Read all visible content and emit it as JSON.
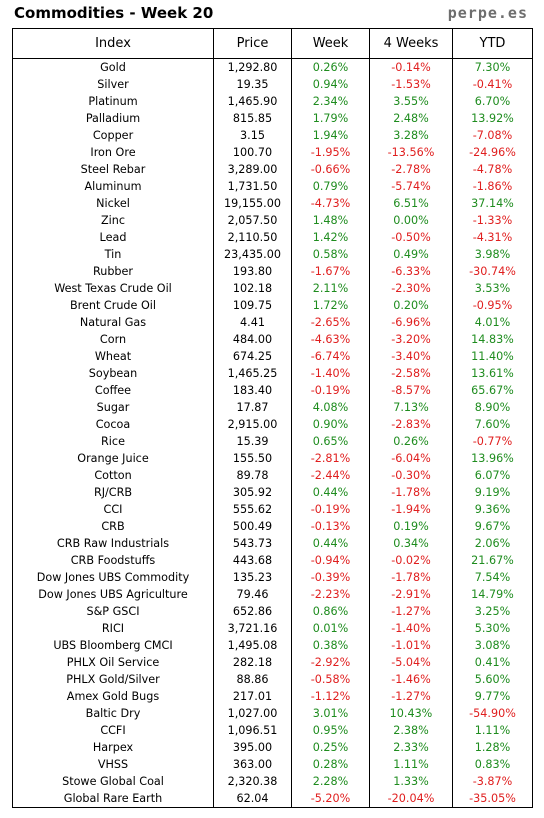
{
  "header": {
    "title": "Commodities - Week 20",
    "brand": "perpe.es"
  },
  "columns": {
    "index": "Index",
    "price": "Price",
    "week": "Week",
    "weeks4": "4 Weeks",
    "ytd": "YTD"
  },
  "colors": {
    "positive": "#1e8c1e",
    "negative": "#e01e1e"
  },
  "rows": [
    [
      "Gold",
      "1,292.80",
      "0.26%",
      "-0.14%",
      "7.30%"
    ],
    [
      "Silver",
      "19.35",
      "0.94%",
      "-1.53%",
      "-0.41%"
    ],
    [
      "Platinum",
      "1,465.90",
      "2.34%",
      "3.55%",
      "6.70%"
    ],
    [
      "Palladium",
      "815.85",
      "1.79%",
      "2.48%",
      "13.92%"
    ],
    [
      "Copper",
      "3.15",
      "1.94%",
      "3.28%",
      "-7.08%"
    ],
    [
      "Iron Ore",
      "100.70",
      "-1.95%",
      "-13.56%",
      "-24.96%"
    ],
    [
      "Steel Rebar",
      "3,289.00",
      "-0.66%",
      "-2.78%",
      "-4.78%"
    ],
    [
      "Aluminum",
      "1,731.50",
      "0.79%",
      "-5.74%",
      "-1.86%"
    ],
    [
      "Nickel",
      "19,155.00",
      "-4.73%",
      "6.51%",
      "37.14%"
    ],
    [
      "Zinc",
      "2,057.50",
      "1.48%",
      "0.00%",
      "-1.33%"
    ],
    [
      "Lead",
      "2,110.50",
      "1.42%",
      "-0.50%",
      "-4.31%"
    ],
    [
      "Tin",
      "23,435.00",
      "0.58%",
      "0.49%",
      "3.98%"
    ],
    [
      "Rubber",
      "193.80",
      "-1.67%",
      "-6.33%",
      "-30.74%"
    ],
    [
      "West Texas Crude Oil",
      "102.18",
      "2.11%",
      "-2.30%",
      "3.53%"
    ],
    [
      "Brent Crude Oil",
      "109.75",
      "1.72%",
      "0.20%",
      "-0.95%"
    ],
    [
      "Natural Gas",
      "4.41",
      "-2.65%",
      "-6.96%",
      "4.01%"
    ],
    [
      "Corn",
      "484.00",
      "-4.63%",
      "-3.20%",
      "14.83%"
    ],
    [
      "Wheat",
      "674.25",
      "-6.74%",
      "-3.40%",
      "11.40%"
    ],
    [
      "Soybean",
      "1,465.25",
      "-1.40%",
      "-2.58%",
      "13.61%"
    ],
    [
      "Coffee",
      "183.40",
      "-0.19%",
      "-8.57%",
      "65.67%"
    ],
    [
      "Sugar",
      "17.87",
      "4.08%",
      "7.13%",
      "8.90%"
    ],
    [
      "Cocoa",
      "2,915.00",
      "0.90%",
      "-2.83%",
      "7.60%"
    ],
    [
      "Rice",
      "15.39",
      "0.65%",
      "0.26%",
      "-0.77%"
    ],
    [
      "Orange Juice",
      "155.50",
      "-2.81%",
      "-6.04%",
      "13.96%"
    ],
    [
      "Cotton",
      "89.78",
      "-2.44%",
      "-0.30%",
      "6.07%"
    ],
    [
      "RJ/CRB",
      "305.92",
      "0.44%",
      "-1.78%",
      "9.19%"
    ],
    [
      "CCI",
      "555.62",
      "-0.19%",
      "-1.94%",
      "9.36%"
    ],
    [
      "CRB",
      "500.49",
      "-0.13%",
      "0.19%",
      "9.67%"
    ],
    [
      "CRB Raw Industrials",
      "543.73",
      "0.44%",
      "0.34%",
      "2.06%"
    ],
    [
      "CRB Foodstuffs",
      "443.68",
      "-0.94%",
      "-0.02%",
      "21.67%"
    ],
    [
      "Dow Jones UBS Commodity",
      "135.23",
      "-0.39%",
      "-1.78%",
      "7.54%"
    ],
    [
      "Dow Jones UBS Agriculture",
      "79.46",
      "-2.23%",
      "-2.91%",
      "14.79%"
    ],
    [
      "S&P GSCI",
      "652.86",
      "0.86%",
      "-1.27%",
      "3.25%"
    ],
    [
      "RICI",
      "3,721.16",
      "0.01%",
      "-1.40%",
      "5.30%"
    ],
    [
      "UBS Bloomberg CMCI",
      "1,495.08",
      "0.38%",
      "-1.01%",
      "3.08%"
    ],
    [
      "PHLX Oil Service",
      "282.18",
      "-2.92%",
      "-5.04%",
      "0.41%"
    ],
    [
      "PHLX Gold/Silver",
      "88.86",
      "-0.58%",
      "-1.46%",
      "5.60%"
    ],
    [
      "Amex Gold Bugs",
      "217.01",
      "-1.12%",
      "-1.27%",
      "9.77%"
    ],
    [
      "Baltic Dry",
      "1,027.00",
      "3.01%",
      "10.43%",
      "-54.90%"
    ],
    [
      "CCFI",
      "1,096.51",
      "0.95%",
      "2.38%",
      "1.11%"
    ],
    [
      "Harpex",
      "395.00",
      "0.25%",
      "2.33%",
      "1.28%"
    ],
    [
      "VHSS",
      "363.00",
      "0.28%",
      "1.11%",
      "0.83%"
    ],
    [
      "Stowe Global Coal",
      "2,320.38",
      "2.28%",
      "1.33%",
      "-3.87%"
    ],
    [
      "Global Rare Earth",
      "62.04",
      "-5.20%",
      "-20.04%",
      "-35.05%"
    ]
  ]
}
